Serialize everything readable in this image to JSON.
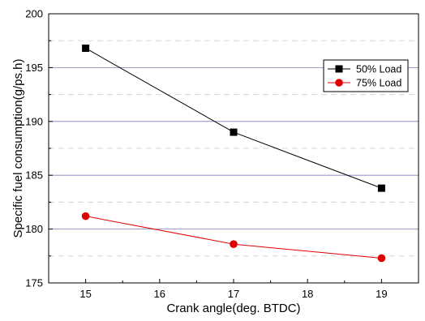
{
  "chart_data": {
    "type": "line",
    "title": "",
    "xlabel": "Crank angle(deg. BTDC)",
    "ylabel": "Specific fuel consumption(g/ps.h)",
    "xlim": [
      14.5,
      19.5
    ],
    "ylim": [
      175,
      200
    ],
    "xticks": [
      15,
      16,
      17,
      18,
      19
    ],
    "yticks": [
      175,
      180,
      185,
      190,
      195,
      200
    ],
    "grid": true,
    "legend_position": "top-right",
    "series": [
      {
        "name": "50% Load",
        "color": "#000000",
        "marker": "square",
        "x": [
          15,
          17,
          19
        ],
        "y": [
          196.8,
          189.0,
          183.8
        ]
      },
      {
        "name": "75% Load",
        "color": "#e00000",
        "marker": "circle",
        "x": [
          15,
          17,
          19
        ],
        "y": [
          181.2,
          178.6,
          177.3
        ]
      }
    ]
  }
}
